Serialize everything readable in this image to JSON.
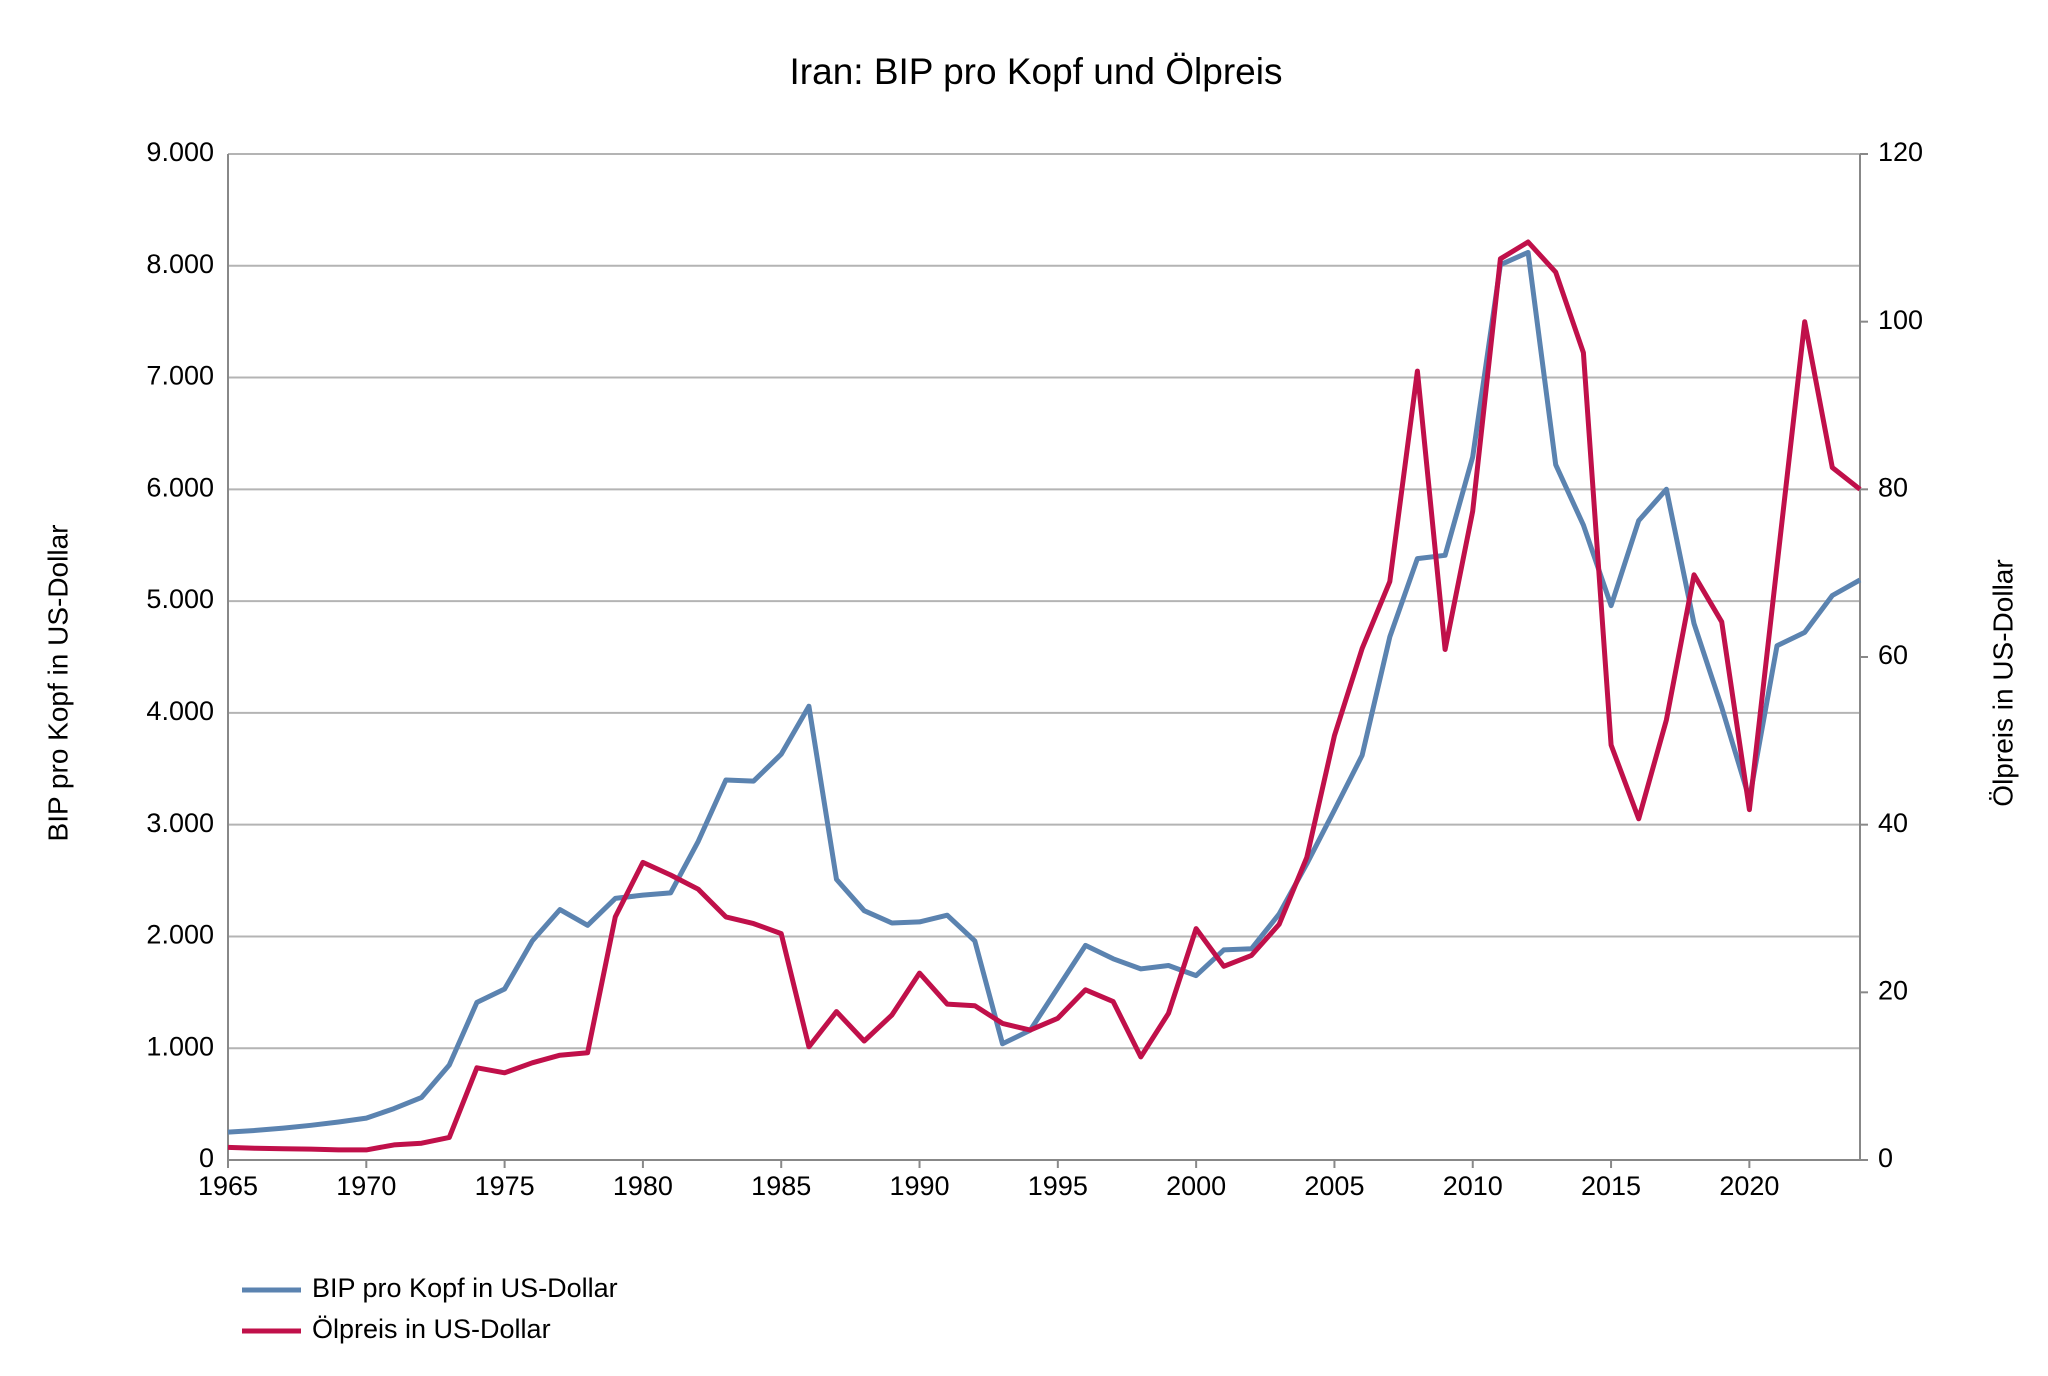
{
  "chart_data": {
    "type": "line",
    "title": "Iran: BIP pro Kopf und Ölpreis",
    "ylabel": "BIP pro Kopf in US-Dollar",
    "y2label": "Ölpreis in US-Dollar",
    "x": [
      1965,
      1966,
      1967,
      1968,
      1969,
      1970,
      1971,
      1972,
      1973,
      1974,
      1975,
      1976,
      1977,
      1978,
      1979,
      1980,
      1981,
      1982,
      1983,
      1984,
      1985,
      1986,
      1987,
      1988,
      1989,
      1990,
      1991,
      1992,
      1993,
      1994,
      1995,
      1996,
      1997,
      1998,
      1999,
      2000,
      2001,
      2002,
      2003,
      2004,
      2005,
      2006,
      2007,
      2008,
      2009,
      2010,
      2011,
      2012,
      2013,
      2014,
      2015,
      2016,
      2017,
      2018,
      2019,
      2020,
      2021,
      2022,
      2023,
      2024
    ],
    "series": [
      {
        "name": "BIP pro Kopf in US-Dollar",
        "color": "#5b83b0",
        "axis": "y",
        "values": [
          250,
          265,
          285,
          310,
          340,
          375,
          460,
          560,
          850,
          1410,
          1530,
          1960,
          2240,
          2100,
          2340,
          2370,
          2390,
          2850,
          3400,
          3390,
          3630,
          4060,
          2510,
          2230,
          2120,
          2130,
          2190,
          1960,
          1040,
          1160,
          1540,
          1920,
          1800,
          1710,
          1740,
          1650,
          1880,
          1890,
          2200,
          2650,
          3130,
          3620,
          4680,
          5380,
          5410,
          6290,
          8010,
          8120,
          6220,
          5680,
          4960,
          5720,
          6000,
          4800,
          4050,
          3230,
          4600,
          4720,
          5050,
          5190
        ]
      },
      {
        "name": "Ölpreis in US-Dollar",
        "color": "#c0104a",
        "axis": "y2",
        "values": [
          1.5,
          1.4,
          1.35,
          1.3,
          1.2,
          1.2,
          1.8,
          2.0,
          2.7,
          11,
          10.4,
          11.6,
          12.5,
          12.8,
          29,
          35.5,
          34,
          32.3,
          29,
          28.2,
          27,
          13.5,
          17.7,
          14.2,
          17.3,
          22.3,
          18.6,
          18.4,
          16.3,
          15.5,
          16.9,
          20.3,
          18.9,
          12.3,
          17.5,
          27.6,
          23.1,
          24.4,
          28.1,
          36.1,
          50.6,
          61,
          69,
          94.1,
          60.9,
          77.4,
          107.5,
          109.5,
          105.9,
          96.3,
          49.5,
          40.7,
          52.5,
          69.8,
          64.2,
          41.8,
          70.9,
          100,
          82.6,
          80
        ]
      }
    ],
    "xlim": [
      1965,
      2024
    ],
    "xticks": [
      1965,
      1970,
      1975,
      1980,
      1985,
      1990,
      1995,
      2000,
      2005,
      2010,
      2015,
      2020
    ],
    "ylim": [
      0,
      9000
    ],
    "yticks": [
      0,
      {
        "value": 1000,
        "label": "1.000"
      },
      {
        "value": 2000,
        "label": "2.000"
      },
      {
        "value": 3000,
        "label": "3.000"
      },
      {
        "value": 4000,
        "label": "4.000"
      },
      {
        "value": 5000,
        "label": "5.000"
      },
      {
        "value": 6000,
        "label": "6.000"
      },
      {
        "value": 7000,
        "label": "7.000"
      },
      {
        "value": 8000,
        "label": "8.000"
      },
      {
        "value": 9000,
        "label": "9.000"
      }
    ],
    "y2lim": [
      0,
      120
    ],
    "y2ticks": [
      0,
      20,
      40,
      60,
      80,
      100,
      120
    ],
    "grid": true,
    "legend": "bottom-left"
  }
}
